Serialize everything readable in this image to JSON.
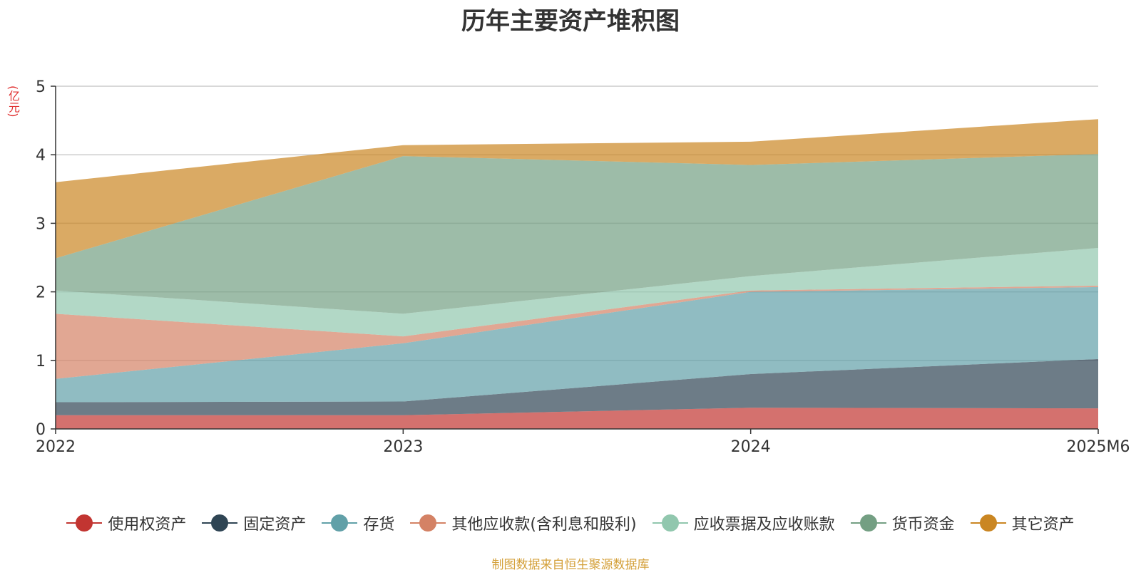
{
  "chart_data": {
    "type": "area",
    "stacked": true,
    "title": "历年主要资产堆积图",
    "ylabel": "(亿元)",
    "xlabel": "",
    "categories": [
      "2022",
      "2023",
      "2024",
      "2025M6"
    ],
    "ylim": [
      0,
      5
    ],
    "yticks": [
      "0",
      "1",
      "2",
      "3",
      "4",
      "5"
    ],
    "grid": true,
    "legend_position": "bottom",
    "series": [
      {
        "name": "使用权资产",
        "color": "#c23531",
        "values": [
          0.2,
          0.2,
          0.31,
          0.3
        ]
      },
      {
        "name": "固定资产",
        "color": "#2f4554",
        "values": [
          0.19,
          0.2,
          0.49,
          0.72
        ]
      },
      {
        "name": "存货",
        "color": "#61a0a8",
        "values": [
          0.34,
          0.85,
          1.2,
          1.05
        ]
      },
      {
        "name": "其他应收款(含利息和股利)",
        "color": "#d48265",
        "values": [
          0.95,
          0.1,
          0.02,
          0.02
        ]
      },
      {
        "name": "应收票据及应收账款",
        "color": "#91c7ae",
        "values": [
          0.34,
          0.33,
          0.21,
          0.55
        ]
      },
      {
        "name": "货币资金",
        "color": "#749f83",
        "values": [
          0.47,
          2.3,
          1.62,
          1.37
        ]
      },
      {
        "name": "其它资产",
        "color": "#ca8622",
        "values": [
          1.11,
          0.16,
          0.34,
          0.51
        ]
      }
    ]
  },
  "source_note": "制图数据来自恒生聚源数据库"
}
